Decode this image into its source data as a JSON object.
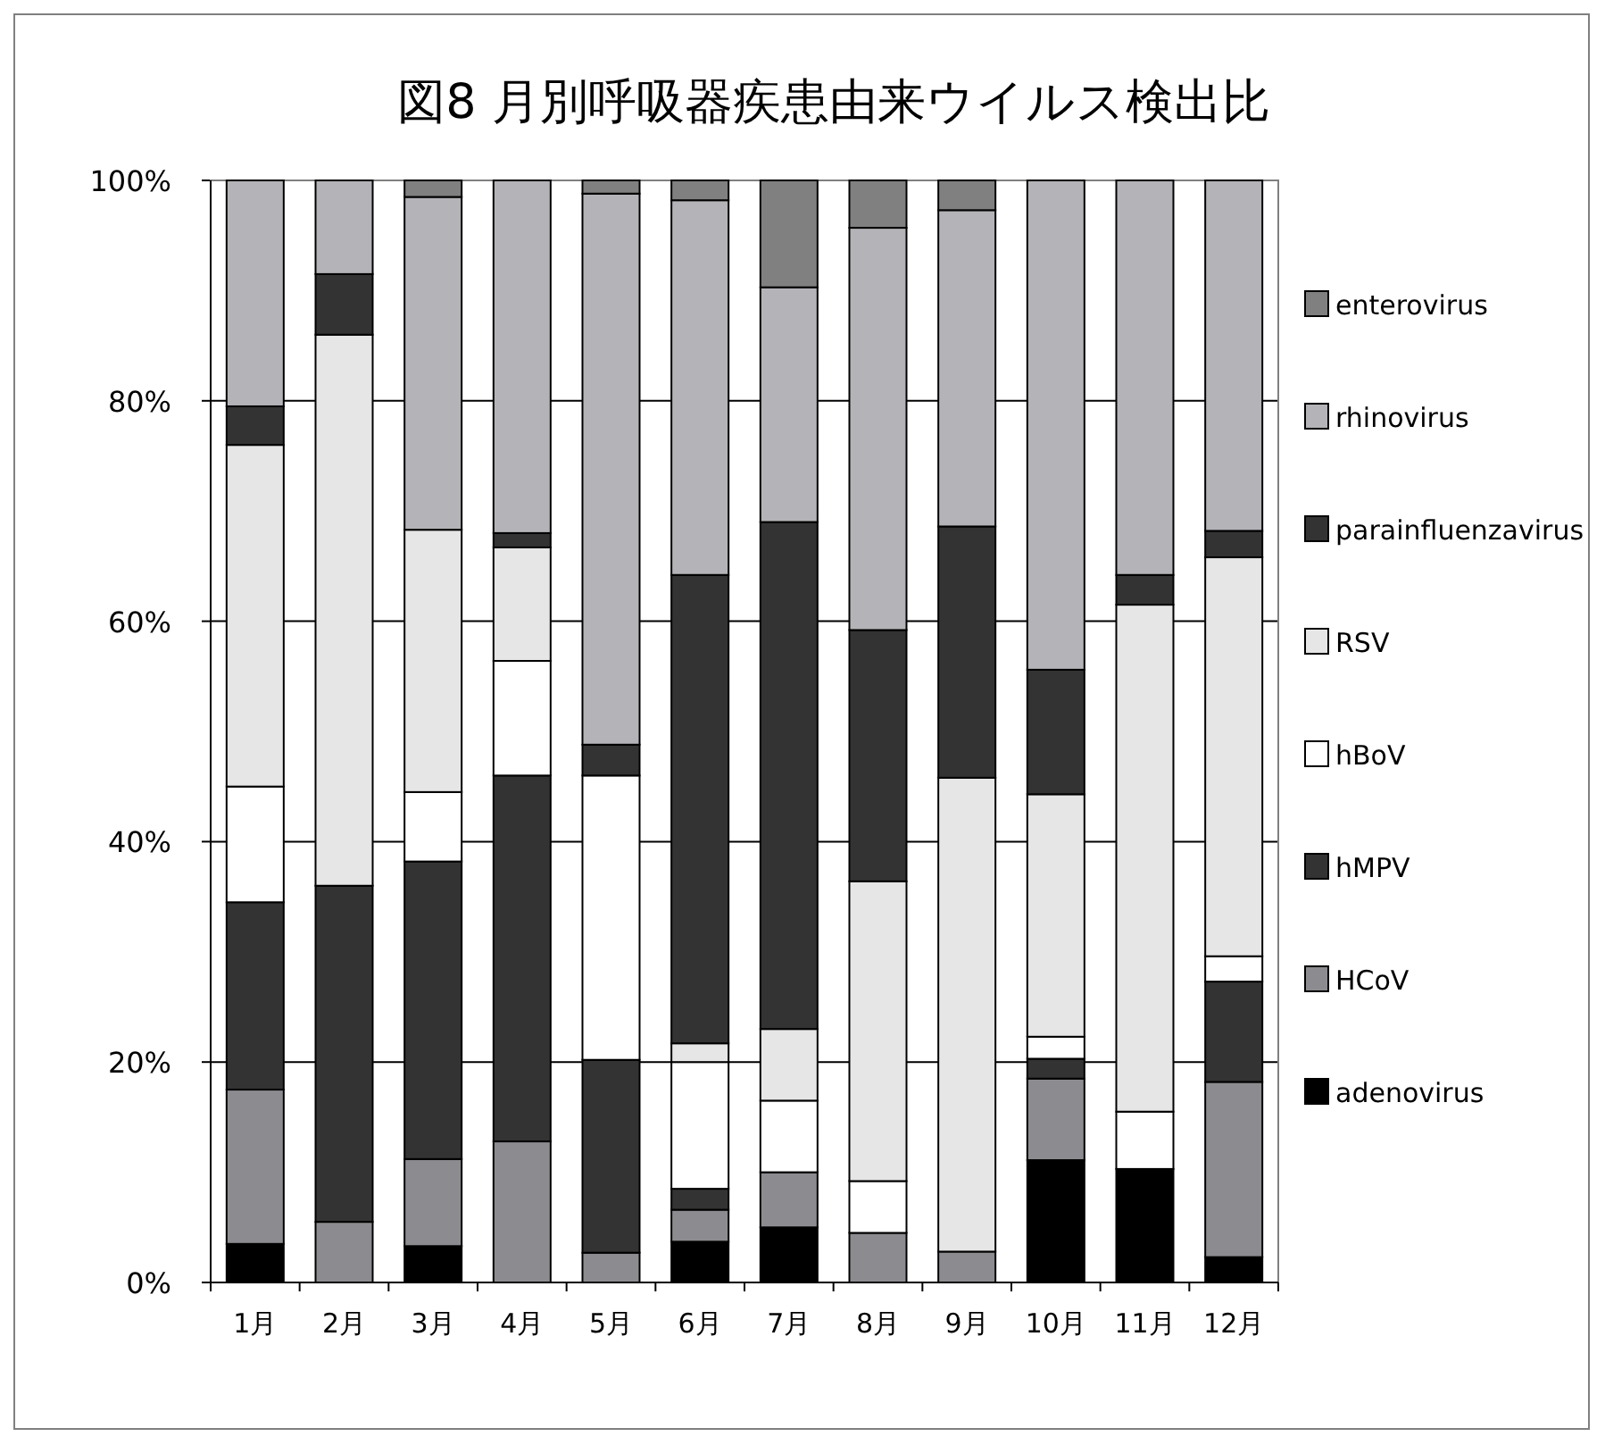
{
  "chart_data": {
    "type": "bar",
    "stacked": true,
    "title": "図8  月別呼吸器疾患由来ウイルス検出比",
    "categories": [
      "1月",
      "2月",
      "3月",
      "4月",
      "5月",
      "6月",
      "7月",
      "8月",
      "9月",
      "10月",
      "11月",
      "12月"
    ],
    "series": [
      {
        "name": "adenovirus",
        "color": "#000000",
        "values": [
          3.5,
          0,
          3.3,
          0,
          0,
          3.7,
          5,
          0,
          0,
          11.1,
          10.3,
          2.3
        ]
      },
      {
        "name": "HCoV",
        "color": "#8c8c90",
        "values": [
          14,
          5.5,
          7.9,
          12.8,
          2.7,
          2.9,
          5,
          4.5,
          2.8,
          7.4,
          0,
          15.9
        ]
      },
      {
        "name": "hMPV",
        "color": "#333333",
        "values": [
          17,
          30.5,
          27,
          33.2,
          17.5,
          1.9,
          0,
          0,
          0,
          1.8,
          0,
          9.1
        ]
      },
      {
        "name": "hBoV",
        "color": "#ffffff",
        "values": [
          10.5,
          0,
          6.3,
          10.4,
          25.8,
          11.5,
          6.5,
          4.7,
          0,
          2,
          5.2,
          2.3
        ]
      },
      {
        "name": "RSV",
        "color": "#e6e6e6",
        "values": [
          31,
          50,
          23.8,
          10.3,
          0,
          1.7,
          6.5,
          27.2,
          43,
          22,
          46,
          36.2
        ]
      },
      {
        "name": "parainfluenzavirus",
        "color": "#333333",
        "values": [
          3.5,
          5.5,
          0,
          1.3,
          2.8,
          42.5,
          46,
          22.8,
          22.8,
          11.3,
          2.7,
          2.4
        ]
      },
      {
        "name": "rhinovirus",
        "color": "#b4b4b8",
        "values": [
          20.5,
          8.5,
          30.2,
          32,
          50,
          34,
          21.3,
          36.5,
          28.7,
          44.4,
          35.8,
          31.8
        ]
      },
      {
        "name": "enterovirus",
        "color": "#808080",
        "values": [
          0,
          0,
          1.5,
          0,
          1.2,
          1.8,
          9.7,
          4.3,
          2.7,
          0,
          0,
          0
        ]
      }
    ],
    "ylim": [
      0,
      100
    ],
    "yticks": [
      {
        "value": 0,
        "label": "0%"
      },
      {
        "value": 20,
        "label": "20%"
      },
      {
        "value": 40,
        "label": "40%"
      },
      {
        "value": 60,
        "label": "60%"
      },
      {
        "value": 80,
        "label": "80%"
      },
      {
        "value": 100,
        "label": "100%"
      }
    ],
    "grid": "y",
    "legend": "right"
  }
}
